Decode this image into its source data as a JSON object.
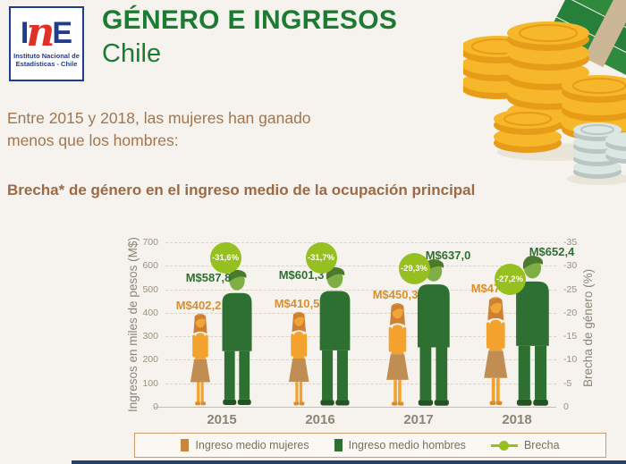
{
  "header": {
    "logo": {
      "letter_i": "I",
      "letter_n": "n",
      "letter_e": "E",
      "caption_line1": "Instituto Nacional de",
      "caption_line2": "Estadísticas - Chile"
    },
    "title": "GÉNERO E INGRESOS",
    "subtitle": "Chile"
  },
  "intro": {
    "line1": "Entre 2015 y 2018, las mujeres han ganado",
    "line2": "menos que los hombres:"
  },
  "section_title": "Brecha* de género en el ingreso medio  de la ocupación principal",
  "chart_data": {
    "type": "bar",
    "categories": [
      "2015",
      "2016",
      "2017",
      "2018"
    ],
    "series": [
      {
        "name": "Ingreso medio mujeres",
        "values": [
          402.2,
          410.5,
          450.3,
          474.9
        ],
        "labels": [
          "M$402,2",
          "M$410,5",
          "M$450,3",
          "M$474,9"
        ],
        "color": "#dd8e27"
      },
      {
        "name": "Ingreso medio hombres",
        "values": [
          587.8,
          601.3,
          637.0,
          652.4
        ],
        "labels": [
          "M$587,8",
          "M$601,3",
          "M$637,0",
          "M$652,4"
        ],
        "color": "#2e7031"
      },
      {
        "name": "Brecha",
        "values": [
          -31.6,
          -31.7,
          -29.3,
          -27.2
        ],
        "labels": [
          "-31,6%",
          "-31,7%",
          "-29,3%",
          "-27,2%"
        ],
        "color": "#96c01f"
      }
    ],
    "ylabel_left": "Ingresos en miles de pesos (M$)",
    "ylabel_right": "Brecha de género (%)",
    "ylim_left": [
      0,
      700
    ],
    "ylim_right": [
      0,
      -35
    ],
    "yticks_left": [
      0,
      100,
      200,
      300,
      400,
      500,
      600,
      700
    ],
    "yticks_right": [
      0,
      -5,
      -10,
      -15,
      -20,
      -25,
      -30,
      -35
    ],
    "grid": "dashed"
  },
  "legend": {
    "items": [
      {
        "label": "Ingreso medio mujeres",
        "type": "square",
        "color": "#c8873a"
      },
      {
        "label": "Ingreso medio hombres",
        "type": "square",
        "color": "#2e7031"
      },
      {
        "label": "Brecha",
        "type": "line-dot",
        "color": "#96c01f"
      }
    ]
  },
  "colors": {
    "background": "#f6f3ee",
    "title_green": "#1d7a33",
    "text_brown": "#a1764f",
    "mujer": "#f3a32d",
    "mujer_head": "#f0a637",
    "mujer_hair": "#cd8032",
    "mujer_falda": "#c08e53",
    "mujer_feet": "#d98e2b",
    "hombre": "#2e7031",
    "hombre_head": "#7fae47",
    "hombre_hair": "#4c7a2c",
    "hombre_feet": "#245426",
    "brecha_badge": "#96c01f",
    "logo_navy": "#1e3d8f",
    "logo_red": "#e03127",
    "footer_navy": "#24406b"
  }
}
